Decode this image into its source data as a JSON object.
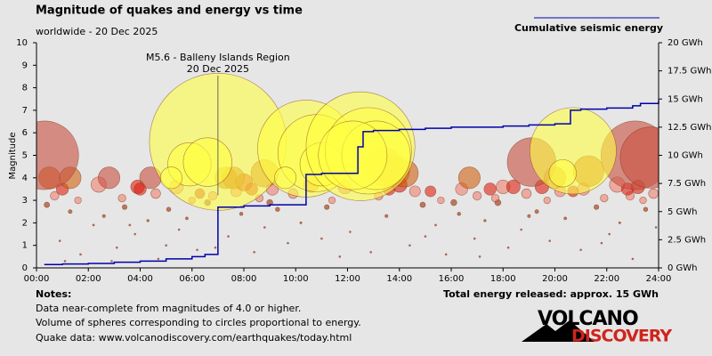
{
  "chart_data": {
    "type": "scatter",
    "title": "Magnitude of quakes and energy vs time",
    "subtitle": "worldwide - 20 Dec 2025",
    "ylabel": "Magnitude",
    "xlim": [
      0,
      24
    ],
    "xticks": [
      {
        "value": 0,
        "label": "00:00"
      },
      {
        "value": 2,
        "label": "02:00"
      },
      {
        "value": 4,
        "label": "04:00"
      },
      {
        "value": 6,
        "label": "06:00"
      },
      {
        "value": 8,
        "label": "08:00"
      },
      {
        "value": 10,
        "label": "10:00"
      },
      {
        "value": 12,
        "label": "12:00"
      },
      {
        "value": 14,
        "label": "14:00"
      },
      {
        "value": 16,
        "label": "16:00"
      },
      {
        "value": 18,
        "label": "18:00"
      },
      {
        "value": 20,
        "label": "20:00"
      },
      {
        "value": 22,
        "label": "22:00"
      },
      {
        "value": 24,
        "label": "24:00"
      }
    ],
    "ylim": [
      0,
      10
    ],
    "yticks": [
      0,
      1,
      2,
      3,
      4,
      5,
      6,
      7,
      8,
      9,
      10
    ],
    "y2lim": [
      0,
      20
    ],
    "y2ticks": [
      {
        "value": 0,
        "label": "0 GWh"
      },
      {
        "value": 2.5,
        "label": "2.5 GWh"
      },
      {
        "value": 5,
        "label": "5 GWh"
      },
      {
        "value": 7.5,
        "label": "7.5 GWh"
      },
      {
        "value": 10,
        "label": "10 GWh"
      },
      {
        "value": 12.5,
        "label": "12.5 GWh"
      },
      {
        "value": 15,
        "label": "15 GWh"
      },
      {
        "value": 17.5,
        "label": "17.5 GWh"
      },
      {
        "value": 20,
        "label": "20 GWh"
      }
    ],
    "grid": false,
    "annotation": {
      "text": "M5.6 - Balleny Islands Region",
      "date": "20 Dec 2025"
    },
    "series": [
      {
        "color": "#b05a3c",
        "x": [
          0.4,
          0.9,
          1.3,
          1.7,
          2.2,
          2.6,
          3.1,
          3.4,
          3.8,
          4.3,
          4.7,
          5.1,
          5.5,
          5.8,
          6.2,
          6.6,
          7.4,
          7.9,
          8.4,
          8.8,
          9.3,
          9.7,
          10.2,
          11.2,
          11.7,
          12.1,
          13.5,
          14.4,
          14.9,
          15.4,
          15.8,
          16.3,
          16.9,
          17.3,
          17.8,
          18.2,
          18.7,
          19.3,
          19.8,
          20.4,
          21.0,
          21.6,
          22.1,
          22.5,
          23.0,
          23.5,
          23.9,
          1.1,
          3.6,
          5.0,
          9.0,
          12.9,
          15.0,
          17.1,
          19.0,
          21.8,
          2.9,
          6.9,
          11.0,
          16.1
        ],
        "values": [
          2.8,
          1.2,
          2.5,
          0.6,
          1.9,
          2.3,
          0.9,
          2.7,
          1.5,
          2.1,
          0.4,
          2.6,
          1.7,
          2.2,
          0.8,
          2.9,
          1.4,
          2.4,
          0.7,
          1.8,
          2.6,
          1.1,
          2.0,
          2.7,
          0.5,
          1.6,
          2.3,
          1.0,
          2.8,
          1.9,
          0.6,
          2.4,
          1.3,
          2.1,
          2.9,
          0.9,
          1.7,
          2.5,
          1.2,
          2.2,
          0.8,
          2.7,
          1.5,
          2.0,
          0.4,
          2.6,
          1.8,
          0.3,
          1.9,
          1.0,
          2.9,
          0.7,
          1.4,
          0.5,
          2.3,
          1.1,
          0.3,
          0.9,
          1.3,
          2.9
        ]
      },
      {
        "color": "#f08070",
        "x": [
          0.7,
          1.6,
          2.4,
          3.3,
          4.6,
          5.4,
          6.0,
          6.8,
          7.7,
          8.6,
          9.1,
          9.9,
          11.4,
          11.9,
          13.2,
          14.6,
          15.6,
          16.4,
          17.0,
          17.7,
          18.0,
          18.9,
          19.7,
          20.2,
          21.1,
          21.9,
          22.4,
          22.9,
          23.4,
          23.8
        ],
        "values": [
          3.2,
          3.0,
          3.7,
          3.1,
          3.3,
          3.6,
          3.0,
          3.2,
          3.4,
          3.1,
          3.5,
          3.3,
          3.0,
          3.6,
          3.2,
          3.4,
          3.0,
          3.5,
          3.2,
          3.1,
          3.6,
          3.3,
          3.0,
          3.4,
          3.5,
          3.1,
          3.7,
          3.2,
          3.0,
          3.3
        ]
      },
      {
        "color": "#e02010",
        "x": [
          3.9,
          4.0,
          6.3,
          8.3,
          10.6,
          14.0,
          17.5,
          18.4,
          20.7,
          23.2,
          8.0,
          13.6,
          15.2,
          22.8,
          1.0,
          19.5
        ],
        "values": [
          3.6,
          3.5,
          3.3,
          3.5,
          3.7,
          3.7,
          3.5,
          3.6,
          3.4,
          3.6,
          3.8,
          3.5,
          3.4,
          3.5,
          3.5,
          3.6
        ]
      },
      {
        "color": "#d06010",
        "x": [
          7.3,
          7.6,
          8.8,
          13.4,
          13.8,
          14.2,
          21.3,
          16.7,
          0.5,
          1.3,
          20.0
        ],
        "values": [
          4.0,
          4.0,
          4.2,
          4.5,
          4.3,
          4.2,
          4.3,
          4.0,
          4.0,
          4.0,
          4.0
        ]
      },
      {
        "color": "#c85040",
        "x": [
          0.3,
          19.1,
          23.1,
          23.7,
          2.8,
          4.4
        ],
        "values": [
          5.0,
          4.7,
          5.0,
          4.9,
          4.0,
          4.0
        ]
      },
      {
        "color": "#ffff44",
        "x": [
          7.0,
          5.9,
          6.6,
          10.4,
          10.8,
          11.0,
          12.5,
          12.8,
          13.1,
          12.2,
          20.7,
          20.3,
          9.6,
          5.2
        ],
        "values": [
          5.6,
          4.6,
          4.7,
          5.3,
          5.1,
          4.6,
          5.4,
          5.2,
          5.0,
          5.0,
          5.2,
          4.2,
          4.0,
          4.0
        ]
      },
      {
        "name": "Cumulative seismic energy",
        "color": "#0000aa",
        "axis": "y2",
        "step": true,
        "x": [
          0.3,
          1,
          2,
          3,
          4,
          5,
          6,
          6.5,
          7.0,
          8,
          9,
          10.4,
          11,
          12.4,
          12.6,
          13,
          14,
          15,
          16,
          18,
          19,
          20,
          20.6,
          21,
          22,
          23,
          23.3,
          24
        ],
        "values": [
          0.3,
          0.35,
          0.4,
          0.5,
          0.6,
          0.8,
          1.0,
          1.2,
          5.4,
          5.5,
          5.6,
          8.3,
          8.4,
          10.75,
          12.1,
          12.2,
          12.3,
          12.4,
          12.5,
          12.6,
          12.7,
          12.8,
          14.0,
          14.1,
          14.2,
          14.4,
          14.6,
          14.9
        ]
      }
    ]
  },
  "notes": {
    "title": "Notes:",
    "lines": [
      "Data near-complete from magnitudes of 4.0 or higher.",
      "Volume of spheres corresponding to circles proportional to energy.",
      "Quake data: www.volcanodiscovery.com/earthquakes/today.html"
    ]
  },
  "total": "Total energy released: approx. 15 GWh",
  "logo": {
    "top": "VOLCANO",
    "bottom": "DISCOVERY"
  }
}
